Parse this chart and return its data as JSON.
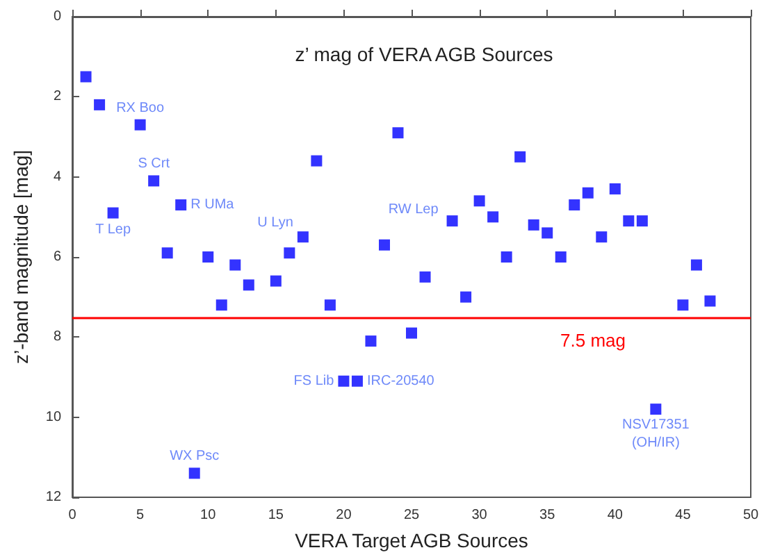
{
  "chart_data": {
    "type": "scatter",
    "title": "z’ mag of VERA AGB Sources",
    "xlabel": "VERA Target AGB Sources",
    "ylabel": "z’-band magnitude [mag]",
    "x": [
      1,
      2,
      3,
      5,
      6,
      7,
      8,
      9,
      10,
      11,
      12,
      13,
      15,
      16,
      17,
      18,
      19,
      20,
      21,
      22,
      23,
      24,
      25,
      26,
      28,
      29,
      30,
      31,
      32,
      33,
      34,
      35,
      36,
      37,
      38,
      39,
      40,
      41,
      42,
      43,
      45,
      46,
      47
    ],
    "series": [
      {
        "color": "#0000ff",
        "values": [
          1.5,
          2.2,
          4.9,
          2.7,
          4.1,
          5.9,
          4.7,
          11.4,
          6.0,
          7.2,
          6.2,
          6.7,
          6.6,
          5.9,
          5.5,
          3.6,
          7.2,
          9.1,
          9.1,
          8.1,
          5.7,
          2.9,
          7.9,
          6.5,
          5.1,
          7.0,
          4.6,
          5.0,
          6.0,
          3.5,
          5.2,
          5.4,
          6.0,
          4.7,
          4.4,
          5.5,
          4.3,
          5.1,
          5.1,
          9.8,
          7.2,
          6.2,
          7.1
        ]
      }
    ],
    "marker": "square",
    "xlim": [
      0,
      50
    ],
    "xticks": [
      0,
      5,
      10,
      15,
      20,
      25,
      30,
      35,
      40,
      45,
      50
    ],
    "ylim": [
      12,
      0
    ],
    "yticks": [
      0,
      2,
      4,
      6,
      8,
      10,
      12
    ],
    "grid": false,
    "ref_lines": [
      {
        "axis": "y",
        "value": 7.5,
        "label": "7.5 mag",
        "color": "#ff0000"
      }
    ],
    "annotations": [
      {
        "text": "RX Boo",
        "x": 5,
        "y": 2.7
      },
      {
        "text": "S Crt",
        "x": 6,
        "y": 4.1
      },
      {
        "text": "T Lep",
        "x": 3,
        "y": 4.9
      },
      {
        "text": "R UMa",
        "x": 8,
        "y": 4.7
      },
      {
        "text": "U Lyn",
        "x": 17,
        "y": 5.5
      },
      {
        "text": "RW Lep",
        "x": 28,
        "y": 5.1
      },
      {
        "text": "FS Lib",
        "x": 20,
        "y": 9.1
      },
      {
        "text": "IRC-20540",
        "x": 21,
        "y": 9.1
      },
      {
        "text": "WX Psc",
        "x": 9,
        "y": 11.4
      },
      {
        "text": "NSV17351\n(OH/IR)",
        "x": 43,
        "y": 9.8
      }
    ]
  }
}
